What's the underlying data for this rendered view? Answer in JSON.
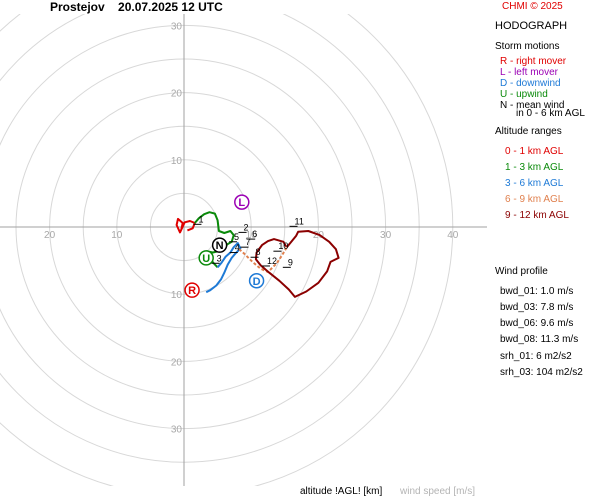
{
  "header": {
    "station": "Prostejov",
    "datetime": "20.07.2025 12 UTC",
    "credit": "CHMI © 2025"
  },
  "sidebar": {
    "title": "HODOGRAPH",
    "storm_motions_title": "Storm motions",
    "storm_motions": [
      {
        "text": "R - right mover",
        "color": "#e00000"
      },
      {
        "text": "L - left mover",
        "color": "#9b00b4"
      },
      {
        "text": "D - downwind",
        "color": "#1e7ad6"
      },
      {
        "text": "U - upwind",
        "color": "#0a8a0a"
      },
      {
        "text": "N - mean wind",
        "color": "#000000"
      },
      {
        "text": "in 0 - 6 km AGL",
        "color": "#000000"
      }
    ],
    "altitude_title": "Altitude ranges",
    "altitude_ranges": [
      {
        "text": "0 - 1 km AGL",
        "color": "#e00000"
      },
      {
        "text": "1 - 3 km AGL",
        "color": "#0a8a0a"
      },
      {
        "text": "3 - 6 km AGL",
        "color": "#1e7ad6"
      },
      {
        "text": "6 - 9 km AGL",
        "color": "#e0804e"
      },
      {
        "text": "9 - 12 km AGL",
        "color": "#8b0000"
      }
    ],
    "wind_profile_title": "Wind profile",
    "wind_profile": [
      "bwd_01: 1.0 m/s",
      "bwd_03: 7.8 m/s",
      "bwd_06: 9.6 m/s",
      "bwd_08: 11.3 m/s"
    ],
    "helicity": [
      "srh_01: 6 m2/s2",
      "srh_03: 104 m2/s2"
    ]
  },
  "footer": {
    "altitude_label": "altitude !AGL! [km]",
    "speed_label": "wind speed [m/s]"
  },
  "chart_data": {
    "type": "line",
    "rings": [
      5,
      10,
      15,
      20,
      25,
      30,
      35,
      40
    ],
    "tick_labels_x": [
      {
        "x": -20,
        "label": "20"
      },
      {
        "x": -10,
        "label": "10"
      },
      {
        "x": 10,
        "label": "10"
      },
      {
        "x": 20,
        "label": "20"
      },
      {
        "x": 30,
        "label": "30"
      },
      {
        "x": 40,
        "label": "40"
      }
    ],
    "tick_labels_y": [
      {
        "y": 30,
        "label": "30"
      },
      {
        "y": 20,
        "label": "20"
      },
      {
        "y": 10,
        "label": "10"
      },
      {
        "y": -10,
        "label": "10"
      },
      {
        "y": -20,
        "label": "20"
      },
      {
        "y": -30,
        "label": "30"
      }
    ],
    "series": [
      {
        "range": "0 - 1 km AGL",
        "color": "#e00000",
        "points": [
          [
            -0.4,
            -0.4
          ],
          [
            -0.2,
            0.6
          ],
          [
            -0.9,
            1.2
          ],
          [
            -1.1,
            0.3
          ],
          [
            -0.6,
            -0.8
          ],
          [
            0.1,
            0.7
          ],
          [
            0.9,
            0.9
          ],
          [
            1.6,
            0.6
          ],
          [
            1.3,
            -0.2
          ],
          [
            0.5,
            -0.5
          ]
        ]
      },
      {
        "range": "1 - 3 km AGL",
        "color": "#0a8a0a",
        "points": [
          [
            1.6,
            0.6
          ],
          [
            2.2,
            1.3
          ],
          [
            3.0,
            1.9
          ],
          [
            3.8,
            2.2
          ],
          [
            4.6,
            2.0
          ],
          [
            5.0,
            1.0
          ],
          [
            5.2,
            -0.6
          ],
          [
            6.0,
            -0.9
          ],
          [
            6.9,
            -0.6
          ],
          [
            7.4,
            -1.2
          ],
          [
            7.1,
            -2.2
          ],
          [
            6.4,
            -2.6
          ],
          [
            6.1,
            -3.2
          ],
          [
            5.5,
            -3.5
          ],
          [
            4.3,
            -3.8
          ],
          [
            3.4,
            -3.6
          ],
          [
            3.2,
            -4.2
          ],
          [
            4.0,
            -4.9
          ],
          [
            4.6,
            -5.6
          ],
          [
            5.0,
            -6.0
          ]
        ]
      },
      {
        "range": "3 - 6 km AGL",
        "color": "#1e7ad6",
        "points": [
          [
            5.0,
            -6.0
          ],
          [
            5.6,
            -5.3
          ],
          [
            6.2,
            -4.4
          ],
          [
            6.9,
            -3.8
          ],
          [
            7.4,
            -3.0
          ],
          [
            8.0,
            -2.4
          ],
          [
            8.4,
            -3.2
          ],
          [
            7.7,
            -3.9
          ],
          [
            7.1,
            -4.6
          ],
          [
            6.5,
            -5.6
          ],
          [
            6.0,
            -6.8
          ],
          [
            5.5,
            -7.8
          ],
          [
            4.8,
            -8.7
          ],
          [
            3.9,
            -9.4
          ],
          [
            3.3,
            -9.7
          ]
        ]
      },
      {
        "range": "6 - 9 km AGL",
        "color": "#e0804e",
        "points": [
          [
            8.2,
            -3.3
          ],
          [
            9.0,
            -4.0
          ],
          [
            10.2,
            -5.2
          ],
          [
            11.4,
            -6.2
          ],
          [
            12.5,
            -6.7
          ],
          [
            13.8,
            -5.4
          ],
          [
            14.6,
            -4.2
          ],
          [
            15.3,
            -3.0
          ]
        ]
      },
      {
        "range": "9 - 12 km AGL",
        "color": "#8b0000",
        "points": [
          [
            15.3,
            -3.0
          ],
          [
            16.7,
            -1.3
          ],
          [
            17.0,
            -0.7
          ],
          [
            18.5,
            -0.6
          ],
          [
            20.2,
            -1.2
          ],
          [
            21.6,
            -2.2
          ],
          [
            22.6,
            -3.3
          ],
          [
            23.0,
            -4.6
          ],
          [
            21.8,
            -5.2
          ],
          [
            21.3,
            -6.6
          ],
          [
            20.0,
            -8.3
          ],
          [
            18.2,
            -9.6
          ],
          [
            16.5,
            -10.4
          ],
          [
            15.6,
            -9.3
          ],
          [
            14.2,
            -8.0
          ],
          [
            12.7,
            -6.8
          ],
          [
            11.4,
            -5.7
          ],
          [
            10.7,
            -4.8
          ],
          [
            10.8,
            -3.8
          ],
          [
            11.6,
            -2.7
          ],
          [
            12.5,
            -2.1
          ],
          [
            13.4,
            -1.8
          ],
          [
            14.8,
            -2.2
          ],
          [
            15.2,
            -2.9
          ]
        ]
      }
    ],
    "height_labels": [
      {
        "label": "1",
        "x": 2.0,
        "y": 0.4
      },
      {
        "label": "2",
        "x": 8.7,
        "y": -0.8
      },
      {
        "label": "3",
        "x": 4.7,
        "y": -5.4
      },
      {
        "label": "4",
        "x": 7.4,
        "y": -3.8
      },
      {
        "label": "5",
        "x": 7.3,
        "y": -2.2
      },
      {
        "label": "6",
        "x": 10.0,
        "y": -1.8
      },
      {
        "label": "7",
        "x": 9.0,
        "y": -3.0
      },
      {
        "label": "8",
        "x": 10.5,
        "y": -4.5
      },
      {
        "label": "9",
        "x": 15.3,
        "y": -6.0
      },
      {
        "label": "10",
        "x": 13.9,
        "y": -3.6
      },
      {
        "label": "11",
        "x": 16.3,
        "y": 0.1
      },
      {
        "label": "12",
        "x": 12.2,
        "y": -5.8
      }
    ],
    "storm_markers": [
      {
        "label": "R",
        "x": 1.2,
        "y": -9.4,
        "color": "#e00000"
      },
      {
        "label": "L",
        "x": 8.6,
        "y": 3.7,
        "color": "#9b00b4"
      },
      {
        "label": "D",
        "x": 10.8,
        "y": -8.0,
        "color": "#1e7ad6"
      },
      {
        "label": "U",
        "x": 3.3,
        "y": -4.6,
        "color": "#0a8a0a"
      },
      {
        "label": "N",
        "x": 5.3,
        "y": -2.7,
        "color": "#000000"
      }
    ]
  }
}
